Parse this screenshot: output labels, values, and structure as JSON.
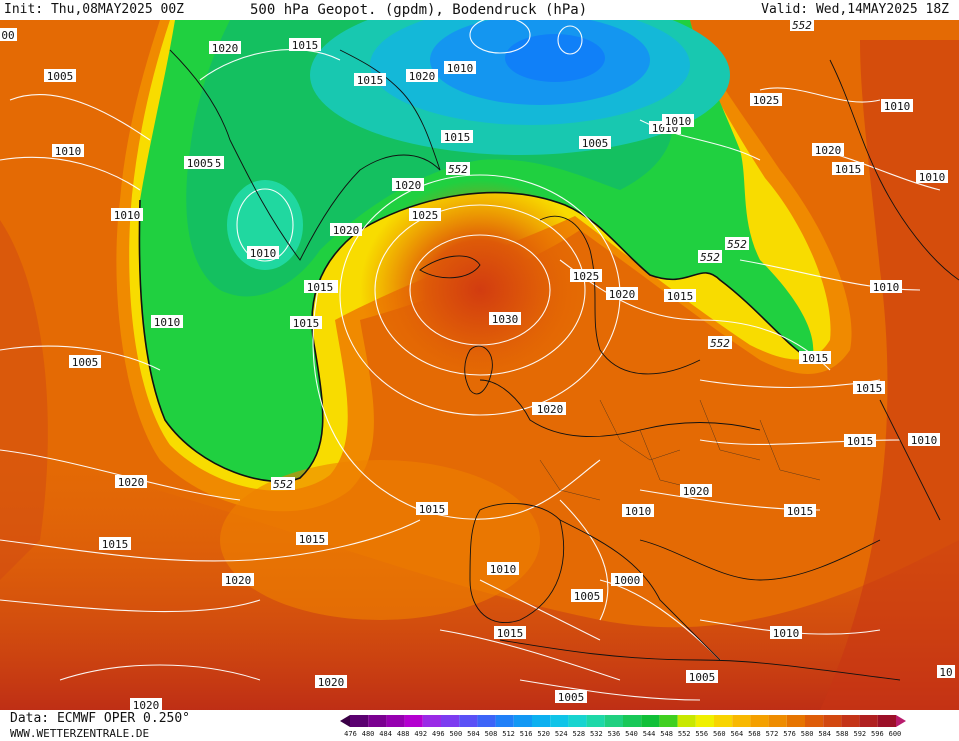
{
  "header": {
    "init": "Init: Thu,08MAY2025 00Z",
    "title": "500 hPa Geopot. (gpdm), Bodendruck (hPa)",
    "valid": "Valid: Wed,14MAY2025 18Z"
  },
  "footer": {
    "data_source": "Data: ECMWF OPER 0.250°",
    "site": "WWW.WETTERZENTRALE.DE"
  },
  "colorbar": {
    "levels": [
      "476",
      "480",
      "484",
      "488",
      "492",
      "496",
      "500",
      "504",
      "508",
      "512",
      "516",
      "520",
      "524",
      "528",
      "532",
      "536",
      "540",
      "544",
      "548",
      "552",
      "556",
      "560",
      "564",
      "568",
      "572",
      "576",
      "580",
      "584",
      "588",
      "592",
      "596",
      "600"
    ],
    "colors": [
      "#3a0046",
      "#5a0070",
      "#7a0090",
      "#9600b0",
      "#b400d0",
      "#9a2ae6",
      "#7c3cf0",
      "#5a50f6",
      "#3c64f8",
      "#2080f8",
      "#1298f4",
      "#0cb0f0",
      "#10c4e8",
      "#18d4d0",
      "#1ed8a8",
      "#20d080",
      "#18c858",
      "#10c038",
      "#40d020",
      "#c8e800",
      "#f0f000",
      "#f8d400",
      "#f8b800",
      "#f4a000",
      "#ee8c00",
      "#e67400",
      "#de5c08",
      "#d24810",
      "#c43418",
      "#b02020",
      "#9c1028",
      "#b81c6c"
    ]
  },
  "labels": {
    "pressure": [
      {
        "t": "1020"
      },
      {
        "t": "1015"
      },
      {
        "t": "1005"
      },
      {
        "t": "1015"
      },
      {
        "t": "1020"
      },
      {
        "t": "1010"
      },
      {
        "t": "1010"
      },
      {
        "t": "1015"
      },
      {
        "t": "1010"
      },
      {
        "t": "1005"
      },
      {
        "t": "1010"
      },
      {
        "t": "1015"
      },
      {
        "t": "1010"
      },
      {
        "t": "1025"
      },
      {
        "t": "1010"
      },
      {
        "t": "1020"
      },
      {
        "t": "1015"
      },
      {
        "t": "1010"
      },
      {
        "t": "1005"
      },
      {
        "t": "1020"
      },
      {
        "t": "1010"
      },
      {
        "t": "1015"
      },
      {
        "t": "1010"
      },
      {
        "t": "1025"
      },
      {
        "t": "1020"
      },
      {
        "t": "1015"
      },
      {
        "t": "1010"
      },
      {
        "t": "1015"
      },
      {
        "t": "1030"
      },
      {
        "t": "1025"
      },
      {
        "t": "1020"
      },
      {
        "t": "1015"
      },
      {
        "t": "1015"
      },
      {
        "t": "1015"
      },
      {
        "t": "1010"
      },
      {
        "t": "1015"
      },
      {
        "t": "1020"
      },
      {
        "t": "1020"
      },
      {
        "t": "1020"
      },
      {
        "t": "1015"
      },
      {
        "t": "1020"
      },
      {
        "t": "1015"
      },
      {
        "t": "1015"
      },
      {
        "t": "1010"
      },
      {
        "t": "1010"
      },
      {
        "t": "1015"
      },
      {
        "t": "1010"
      },
      {
        "t": "1000"
      },
      {
        "t": "1005"
      },
      {
        "t": "1015"
      },
      {
        "t": "1010"
      },
      {
        "t": "1005"
      },
      {
        "t": "1005"
      },
      {
        "t": "1020"
      },
      {
        "t": "1020"
      },
      {
        "t": "1005"
      },
      {
        "t": "1010"
      },
      {
        "t": "1015"
      },
      {
        "t": "1015"
      },
      {
        "t": "1010"
      },
      {
        "t": "1005"
      },
      {
        "t": "1020"
      },
      {
        "t": "1010"
      },
      {
        "t": "00"
      },
      {
        "t": "10"
      }
    ],
    "geopotential": [
      {
        "t": "552"
      },
      {
        "t": "552"
      },
      {
        "t": "552"
      },
      {
        "t": "552"
      },
      {
        "t": "552"
      },
      {
        "t": "552"
      }
    ]
  }
}
